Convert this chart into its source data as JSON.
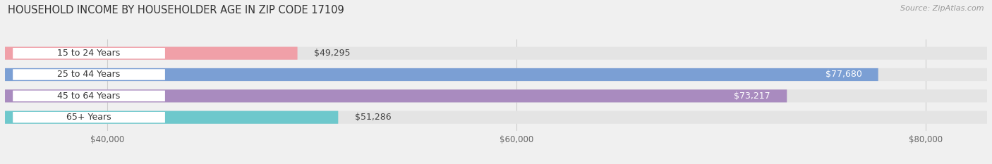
{
  "title": "HOUSEHOLD INCOME BY HOUSEHOLDER AGE IN ZIP CODE 17109",
  "source": "Source: ZipAtlas.com",
  "categories": [
    "15 to 24 Years",
    "25 to 44 Years",
    "45 to 64 Years",
    "65+ Years"
  ],
  "values": [
    49295,
    77680,
    73217,
    51286
  ],
  "bar_colors": [
    "#f0a0a8",
    "#7b9fd4",
    "#a98bbf",
    "#6ec8cc"
  ],
  "label_colors": [
    "#555555",
    "#ffffff",
    "#ffffff",
    "#555555"
  ],
  "xlim_min": 35000,
  "xlim_max": 83000,
  "xticks": [
    40000,
    60000,
    80000
  ],
  "xtick_labels": [
    "$40,000",
    "$60,000",
    "$80,000"
  ],
  "background_color": "#f0f0f0",
  "bar_background": "#e4e4e4",
  "title_fontsize": 10.5,
  "source_fontsize": 8,
  "bar_height": 0.6,
  "label_fontsize": 9,
  "value_threshold": 65000
}
